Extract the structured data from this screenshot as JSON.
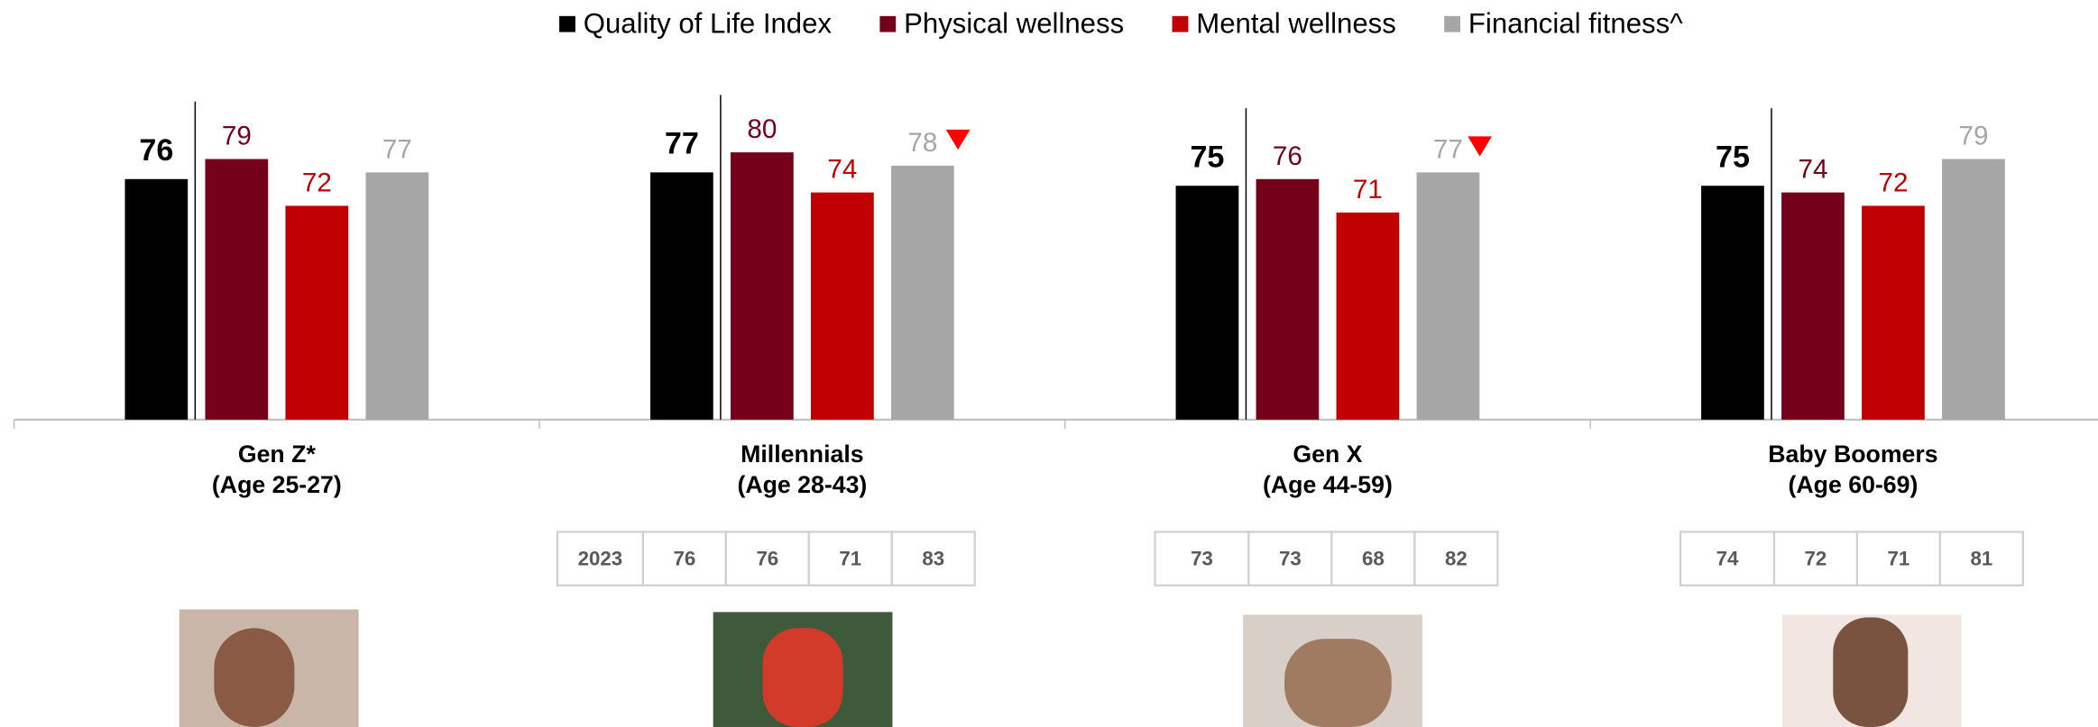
{
  "chart_data": {
    "type": "bar",
    "categories": [
      "Gen Z*",
      "Millennials",
      "Gen X",
      "Baby Boomers"
    ],
    "subcategories": [
      "(Age 25-27)",
      "(Age 28-43)",
      "(Age 44-59)",
      "(Age 60-69)"
    ],
    "series": [
      {
        "name": "Quality of Life Index",
        "color": "#000000",
        "values": [
          76,
          77,
          75,
          75
        ]
      },
      {
        "name": "Physical wellness",
        "color": "#75001a",
        "values": [
          79,
          80,
          76,
          74
        ]
      },
      {
        "name": "Mental wellness",
        "color": "#c00000",
        "values": [
          72,
          74,
          71,
          72
        ]
      },
      {
        "name": "Financial fitness^",
        "color": "#a6a6a6",
        "values": [
          77,
          78,
          77,
          79
        ]
      }
    ],
    "ylim": [
      40,
      90
    ],
    "table": {
      "label": "2023",
      "values": [
        null,
        [
          76,
          76,
          71,
          83
        ],
        [
          73,
          73,
          68,
          82
        ],
        [
          74,
          72,
          71,
          81
        ]
      ]
    }
  }
}
